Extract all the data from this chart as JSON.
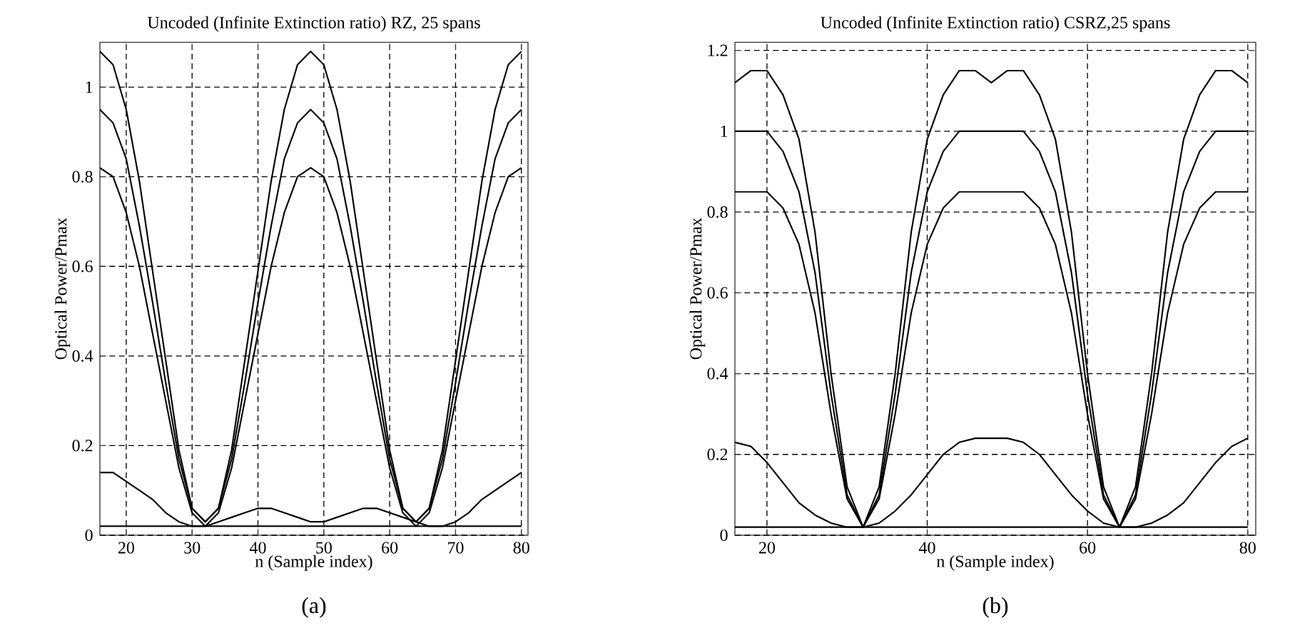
{
  "chart_data": [
    {
      "type": "line",
      "title": "Uncoded (Infinite Extinction ratio) RZ, 25 spans",
      "xlabel": "n (Sample index)",
      "ylabel": "Optical Power/Pmax",
      "annotations": [
        "(a)"
      ],
      "x": [
        16,
        18,
        20,
        22,
        24,
        26,
        28,
        30,
        32,
        34,
        36,
        38,
        40,
        42,
        44,
        46,
        48,
        50,
        52,
        54,
        56,
        58,
        60,
        62,
        64,
        66,
        68,
        70,
        72,
        74,
        76,
        78,
        80
      ],
      "xlim": [
        16,
        81
      ],
      "ylim": [
        0,
        1.1
      ],
      "xticks": [
        20,
        30,
        40,
        50,
        60,
        70,
        80
      ],
      "yticks": [
        0,
        0.2,
        0.4,
        0.6,
        0.8,
        1
      ],
      "grid": true,
      "series": [
        {
          "color": "#000000",
          "values": [
            1.08,
            1.05,
            0.95,
            0.79,
            0.59,
            0.39,
            0.19,
            0.06,
            0.03,
            0.06,
            0.19,
            0.39,
            0.59,
            0.79,
            0.95,
            1.05,
            1.08,
            1.05,
            0.95,
            0.79,
            0.59,
            0.39,
            0.19,
            0.06,
            0.03,
            0.06,
            0.19,
            0.39,
            0.59,
            0.79,
            0.95,
            1.05,
            1.08
          ]
        },
        {
          "color": "#000000",
          "values": [
            0.95,
            0.92,
            0.84,
            0.69,
            0.52,
            0.34,
            0.17,
            0.06,
            0.03,
            0.06,
            0.17,
            0.34,
            0.52,
            0.69,
            0.84,
            0.92,
            0.95,
            0.92,
            0.84,
            0.69,
            0.52,
            0.34,
            0.17,
            0.06,
            0.03,
            0.06,
            0.17,
            0.34,
            0.52,
            0.69,
            0.84,
            0.92,
            0.95
          ]
        },
        {
          "color": "#000000",
          "values": [
            0.82,
            0.8,
            0.72,
            0.6,
            0.45,
            0.3,
            0.15,
            0.05,
            0.02,
            0.05,
            0.15,
            0.3,
            0.45,
            0.6,
            0.72,
            0.8,
            0.82,
            0.8,
            0.72,
            0.6,
            0.45,
            0.3,
            0.15,
            0.05,
            0.02,
            0.05,
            0.15,
            0.3,
            0.45,
            0.6,
            0.72,
            0.8,
            0.82
          ]
        },
        {
          "color": "#000000",
          "values": [
            0.02,
            0.02,
            0.02,
            0.02,
            0.02,
            0.02,
            0.02,
            0.02,
            0.02,
            0.02,
            0.02,
            0.02,
            0.02,
            0.02,
            0.02,
            0.02,
            0.02,
            0.02,
            0.02,
            0.02,
            0.02,
            0.02,
            0.02,
            0.02,
            0.02,
            0.02,
            0.02,
            0.02,
            0.02,
            0.02,
            0.02,
            0.02,
            0.02
          ]
        },
        {
          "color": "#000000",
          "values": [
            0.14,
            0.14,
            0.12,
            0.1,
            0.08,
            0.05,
            0.03,
            0.02,
            0.02,
            0.03,
            0.04,
            0.05,
            0.06,
            0.06,
            0.05,
            0.04,
            0.03,
            0.03,
            0.04,
            0.05,
            0.06,
            0.06,
            0.05,
            0.04,
            0.03,
            0.02,
            0.02,
            0.03,
            0.05,
            0.08,
            0.1,
            0.12,
            0.14
          ]
        }
      ]
    },
    {
      "type": "line",
      "title": "Uncoded (Infinite Extinction ratio) CSRZ,25 spans",
      "xlabel": "n (Sample index)",
      "ylabel": "Optical Power/Pmax",
      "annotations": [
        "(b)"
      ],
      "x": [
        16,
        18,
        20,
        22,
        24,
        26,
        28,
        30,
        32,
        34,
        36,
        38,
        40,
        42,
        44,
        46,
        48,
        50,
        52,
        54,
        56,
        58,
        60,
        62,
        64,
        66,
        68,
        70,
        72,
        74,
        76,
        78,
        80
      ],
      "xlim": [
        16,
        81
      ],
      "ylim": [
        0,
        1.22
      ],
      "xticks": [
        20,
        40,
        60,
        80
      ],
      "yticks": [
        0,
        0.2,
        0.4,
        0.6,
        0.8,
        1,
        1.2
      ],
      "grid": true,
      "series": [
        {
          "color": "#000000",
          "values": [
            1.0,
            1.0,
            1.0,
            0.95,
            0.85,
            0.65,
            0.35,
            0.1,
            0.02,
            0.1,
            0.35,
            0.65,
            0.85,
            0.95,
            1.0,
            1.0,
            1.0,
            1.0,
            1.0,
            0.95,
            0.85,
            0.65,
            0.35,
            0.1,
            0.02,
            0.1,
            0.35,
            0.65,
            0.85,
            0.95,
            1.0,
            1.0,
            1.0
          ]
        },
        {
          "color": "#000000",
          "values": [
            1.12,
            1.15,
            1.15,
            1.09,
            0.98,
            0.75,
            0.4,
            0.12,
            0.02,
            0.12,
            0.4,
            0.75,
            0.98,
            1.09,
            1.15,
            1.15,
            1.12,
            1.15,
            1.15,
            1.09,
            0.98,
            0.75,
            0.4,
            0.12,
            0.02,
            0.12,
            0.4,
            0.75,
            0.98,
            1.09,
            1.15,
            1.15,
            1.12
          ]
        },
        {
          "color": "#000000",
          "values": [
            0.85,
            0.85,
            0.85,
            0.81,
            0.72,
            0.55,
            0.3,
            0.09,
            0.02,
            0.09,
            0.3,
            0.55,
            0.72,
            0.81,
            0.85,
            0.85,
            0.85,
            0.85,
            0.85,
            0.81,
            0.72,
            0.55,
            0.3,
            0.09,
            0.02,
            0.09,
            0.3,
            0.55,
            0.72,
            0.81,
            0.85,
            0.85,
            0.85
          ]
        },
        {
          "color": "#000000",
          "values": [
            0.02,
            0.02,
            0.02,
            0.02,
            0.02,
            0.02,
            0.02,
            0.02,
            0.02,
            0.02,
            0.02,
            0.02,
            0.02,
            0.02,
            0.02,
            0.02,
            0.02,
            0.02,
            0.02,
            0.02,
            0.02,
            0.02,
            0.02,
            0.02,
            0.02,
            0.02,
            0.02,
            0.02,
            0.02,
            0.02,
            0.02,
            0.02,
            0.02
          ]
        },
        {
          "color": "#000000",
          "values": [
            0.23,
            0.22,
            0.18,
            0.13,
            0.08,
            0.05,
            0.03,
            0.02,
            0.02,
            0.03,
            0.06,
            0.1,
            0.15,
            0.2,
            0.23,
            0.24,
            0.24,
            0.24,
            0.23,
            0.2,
            0.15,
            0.1,
            0.06,
            0.03,
            0.02,
            0.02,
            0.03,
            0.05,
            0.08,
            0.13,
            0.18,
            0.22,
            0.24
          ]
        }
      ]
    }
  ]
}
